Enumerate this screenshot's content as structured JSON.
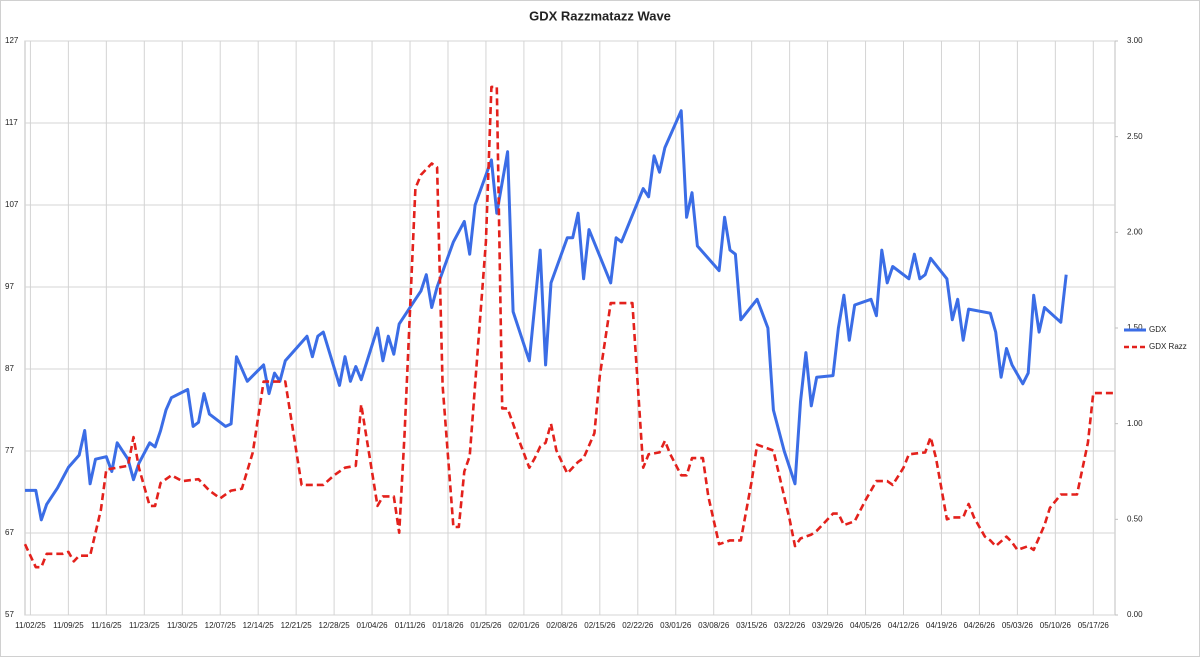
{
  "chart_data": {
    "type": "line",
    "title": "GDX Razzmatazz Wave",
    "xlim": [
      "11/01/25",
      "05/21/26"
    ],
    "xticks": [
      "11/02/25",
      "11/09/25",
      "11/16/25",
      "11/23/25",
      "11/30/25",
      "12/07/25",
      "12/14/25",
      "12/21/25",
      "12/28/25",
      "01/04/26",
      "01/11/26",
      "01/18/26",
      "01/25/26",
      "02/01/26",
      "02/08/26",
      "02/15/26",
      "02/22/26",
      "03/01/26",
      "03/08/26",
      "03/15/26",
      "03/22/26",
      "03/29/26",
      "04/05/26",
      "04/12/26",
      "04/19/26",
      "04/26/26",
      "05/03/26",
      "05/10/26",
      "05/17/26"
    ],
    "ylim": [
      57,
      127
    ],
    "yticks": [
      57,
      67,
      77,
      87,
      97,
      107,
      117,
      127
    ],
    "y2lim": [
      0,
      3
    ],
    "y2ticks": [
      {
        "value": 0,
        "label": "0.00"
      },
      {
        "value": 0.5,
        "label": "0.50"
      },
      {
        "value": 1,
        "label": "1.00"
      },
      {
        "value": 1.5,
        "label": "1.50"
      },
      {
        "value": 2,
        "label": "2.00"
      },
      {
        "value": 2.5,
        "label": "2.50"
      },
      {
        "value": 3,
        "label": "3.00"
      }
    ],
    "grid": true,
    "legend": "right",
    "series": [
      {
        "name": "GDX",
        "color": "#3b6de6",
        "dash": false,
        "x": [
          "11/01/25",
          "11/03/25",
          "11/04/25",
          "11/05/25",
          "11/07/25",
          "11/09/25",
          "11/11/25",
          "11/12/25",
          "11/13/25",
          "11/14/25",
          "11/16/25",
          "11/17/25",
          "11/18/25",
          "11/20/25",
          "11/21/25",
          "11/22/25",
          "11/24/25",
          "11/25/25",
          "11/26/25",
          "11/27/25",
          "11/28/25",
          "12/01/25",
          "12/02/25",
          "12/03/25",
          "12/04/25",
          "12/05/25",
          "12/08/25",
          "12/09/25",
          "12/10/25",
          "12/12/25",
          "12/15/25",
          "12/16/25",
          "12/17/25",
          "12/18/25",
          "12/19/25",
          "12/23/25",
          "12/24/25",
          "12/25/25",
          "12/26/25",
          "12/29/25",
          "12/30/25",
          "12/31/25",
          "01/01/26",
          "01/02/26",
          "01/05/26",
          "01/06/26",
          "01/07/26",
          "01/08/26",
          "01/09/26",
          "01/12/26",
          "01/13/26",
          "01/14/26",
          "01/15/26",
          "01/16/26",
          "01/19/26",
          "01/21/26",
          "01/22/26",
          "01/23/26",
          "01/26/26",
          "01/27/26",
          "01/29/26",
          "01/30/26",
          "02/02/26",
          "02/04/26",
          "02/05/26",
          "02/06/26",
          "02/09/26",
          "02/10/26",
          "02/11/26",
          "02/12/26",
          "02/13/26",
          "02/17/26",
          "02/18/26",
          "02/19/26",
          "02/23/26",
          "02/24/26",
          "02/25/26",
          "02/26/26",
          "02/27/26",
          "03/02/26",
          "03/03/26",
          "03/04/26",
          "03/05/26",
          "03/09/26",
          "03/10/26",
          "03/11/26",
          "03/12/26",
          "03/13/26",
          "03/16/26",
          "03/18/26",
          "03/19/26",
          "03/21/26",
          "03/23/26",
          "03/24/26",
          "03/25/26",
          "03/26/26",
          "03/27/26",
          "03/30/26",
          "03/31/26",
          "04/01/26",
          "04/02/26",
          "04/03/26",
          "04/06/26",
          "04/07/26",
          "04/08/26",
          "04/09/26",
          "04/10/26",
          "04/13/26",
          "04/14/26",
          "04/15/26",
          "04/16/26",
          "04/17/26",
          "04/20/26",
          "04/21/26",
          "04/22/26",
          "04/23/26",
          "04/24/26",
          "04/28/26",
          "04/29/26",
          "04/30/26",
          "05/01/26",
          "05/02/26",
          "05/04/26",
          "05/05/26",
          "05/06/26",
          "05/07/26",
          "05/08/26",
          "05/11/26",
          "05/12/26"
        ],
        "values": [
          72.2,
          72.2,
          68.6,
          70.5,
          72.5,
          75,
          76.5,
          79.5,
          73,
          76,
          76.3,
          74.5,
          78,
          76,
          73.5,
          75.5,
          78,
          77.5,
          79.5,
          82,
          83.5,
          84.5,
          80,
          80.5,
          84,
          81.5,
          80,
          80.3,
          88.5,
          85.5,
          87.5,
          84,
          86.5,
          85.5,
          88,
          91,
          88.5,
          91,
          91.5,
          85,
          88.5,
          85.5,
          87.3,
          85.7,
          92,
          88,
          91,
          88.8,
          92.5,
          95.5,
          96.5,
          98.5,
          94.5,
          97,
          102.5,
          105,
          101,
          107,
          112.5,
          106,
          113.5,
          94,
          88,
          101.5,
          87.5,
          97.5,
          103,
          103,
          106,
          98,
          104,
          97.5,
          103,
          102.5,
          109,
          108,
          113,
          111,
          114,
          118.5,
          105.5,
          108.5,
          102,
          99,
          105.5,
          101.5,
          101,
          93,
          95.5,
          92,
          82,
          77,
          73,
          83,
          89,
          82.5,
          86,
          86.2,
          92,
          96,
          90.5,
          94.8,
          95.5,
          93.5,
          101.5,
          97.5,
          99.5,
          98,
          101,
          98,
          98.5,
          100.5,
          98,
          93,
          95.5,
          90.5,
          94.3,
          93.8,
          91.5,
          86,
          89.5,
          87.5,
          85.2,
          86.5,
          96,
          91.5,
          94.5,
          92.7,
          98.5
        ]
      },
      {
        "name": "GDX Razz",
        "color": "#e3211c",
        "dash": true,
        "axis": "y2",
        "x": [
          "11/01/25",
          "11/03/25",
          "11/04/25",
          "11/05/25",
          "11/08/25",
          "11/09/25",
          "11/10/25",
          "11/11/25",
          "11/13/25",
          "11/15/25",
          "11/16/25",
          "11/18/25",
          "11/20/25",
          "11/21/25",
          "11/22/25",
          "11/24/25",
          "11/25/25",
          "11/26/25",
          "11/28/25",
          "11/30/25",
          "12/03/25",
          "12/05/25",
          "12/07/25",
          "12/09/25",
          "12/11/25",
          "12/13/25",
          "12/15/25",
          "12/19/25",
          "12/22/25",
          "12/26/25",
          "12/28/25",
          "12/30/25",
          "01/01/26",
          "01/02/26",
          "01/05/26",
          "01/06/26",
          "01/08/26",
          "01/09/26",
          "01/10/26",
          "01/12/26",
          "01/13/26",
          "01/15/26",
          "01/16/26",
          "01/17/26",
          "01/19/26",
          "01/20/26",
          "01/21/26",
          "01/22/26",
          "01/25/26",
          "01/26/26",
          "01/27/26",
          "01/28/26",
          "01/29/26",
          "01/31/26",
          "02/02/26",
          "02/03/26",
          "02/04/26",
          "02/05/26",
          "02/06/26",
          "02/07/26",
          "02/09/26",
          "02/11/26",
          "02/12/26",
          "02/14/26",
          "02/15/26",
          "02/17/26",
          "02/21/26",
          "02/23/26",
          "02/24/26",
          "02/26/26",
          "02/27/26",
          "02/28/26",
          "03/02/26",
          "03/03/26",
          "03/04/26",
          "03/06/26",
          "03/07/26",
          "03/09/26",
          "03/10/26",
          "03/11/26",
          "03/13/26",
          "03/15/26",
          "03/16/26",
          "03/19/26",
          "03/22/26",
          "03/23/26",
          "03/24/26",
          "03/26/26",
          "03/27/26",
          "03/28/26",
          "03/30/26",
          "03/31/26",
          "04/01/26",
          "04/03/26",
          "04/05/26",
          "04/07/26",
          "04/09/26",
          "04/10/26",
          "04/12/26",
          "04/13/26",
          "04/16/26",
          "04/17/26",
          "04/18/26",
          "04/20/26",
          "04/21/26",
          "04/23/26",
          "04/24/26",
          "04/25/26",
          "04/27/26",
          "04/28/26",
          "04/29/26",
          "05/01/26",
          "05/02/26",
          "05/03/26",
          "05/05/26",
          "05/06/26",
          "05/08/26",
          "05/09/26",
          "05/11/26",
          "05/14/26",
          "05/16/26",
          "05/17/26",
          "05/21/26"
        ],
        "values": [
          0.37,
          0.25,
          0.25,
          0.32,
          0.32,
          0.33,
          0.28,
          0.31,
          0.31,
          0.55,
          0.76,
          0.77,
          0.78,
          0.93,
          0.77,
          0.57,
          0.57,
          0.69,
          0.73,
          0.7,
          0.71,
          0.65,
          0.61,
          0.65,
          0.66,
          0.85,
          1.22,
          1.22,
          0.68,
          0.68,
          0.73,
          0.77,
          0.78,
          1.1,
          0.57,
          0.62,
          0.62,
          0.43,
          0.95,
          2.23,
          2.3,
          2.36,
          2.34,
          1.2,
          0.46,
          0.46,
          0.75,
          0.83,
          1.95,
          2.76,
          2.76,
          1.08,
          1.08,
          0.92,
          0.77,
          0.82,
          0.88,
          0.9,
          1,
          0.86,
          0.74,
          0.8,
          0.82,
          0.95,
          1.25,
          1.63,
          1.63,
          0.77,
          0.84,
          0.85,
          0.91,
          0.84,
          0.73,
          0.73,
          0.82,
          0.82,
          0.62,
          0.37,
          0.38,
          0.39,
          0.39,
          0.7,
          0.89,
          0.86,
          0.5,
          0.36,
          0.4,
          0.42,
          0.44,
          0.47,
          0.53,
          0.53,
          0.47,
          0.49,
          0.6,
          0.7,
          0.7,
          0.68,
          0.77,
          0.84,
          0.85,
          0.93,
          0.82,
          0.5,
          0.51,
          0.51,
          0.58,
          0.51,
          0.41,
          0.39,
          0.36,
          0.41,
          0.38,
          0.34,
          0.36,
          0.34,
          0.47,
          0.56,
          0.63,
          0.63,
          0.9,
          1.16,
          1.16
        ]
      }
    ]
  }
}
